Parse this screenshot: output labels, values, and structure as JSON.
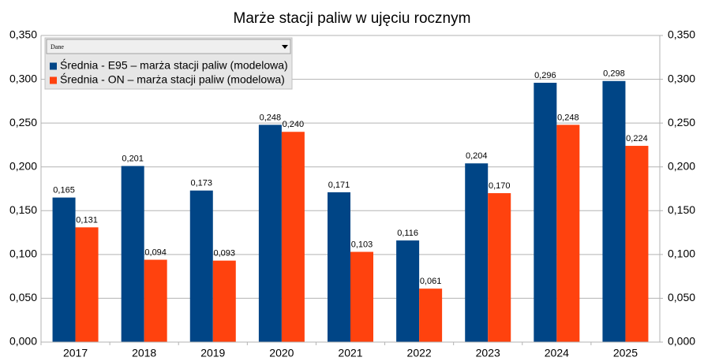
{
  "chart_data": {
    "type": "bar",
    "title": "Marże stacji paliw w ujęciu rocznym",
    "categories": [
      "2017",
      "2018",
      "2019",
      "2020",
      "2021",
      "2022",
      "2023",
      "2024",
      "2025"
    ],
    "series": [
      {
        "name": "Średnia - E95 – marża stacji paliw (modelowa)",
        "color": "#004586",
        "values": [
          0.165,
          0.201,
          0.173,
          0.248,
          0.171,
          0.116,
          0.204,
          0.296,
          0.298
        ],
        "value_labels": [
          "0,165",
          "0,201",
          "0,173",
          "0,248",
          "0,171",
          "0,116",
          "0,204",
          "0,296",
          "0,298"
        ]
      },
      {
        "name": "Średnia - ON – marża stacji paliw (modelowa)",
        "color": "#ff420e",
        "values": [
          0.131,
          0.094,
          0.093,
          0.24,
          0.103,
          0.061,
          0.17,
          0.248,
          0.224
        ],
        "value_labels": [
          "0,131",
          "0,094",
          "0,093",
          "0,240",
          "0,103",
          "0,061",
          "0,170",
          "0,248",
          "0,224"
        ]
      }
    ],
    "legend_title": "Dane",
    "ylim": [
      0,
      0.35
    ],
    "yticks": [
      {
        "value": 0,
        "label": "0,000"
      },
      {
        "value": 0.05,
        "label": "0,050"
      },
      {
        "value": 0.1,
        "label": "0,100"
      },
      {
        "value": 0.15,
        "label": "0,150"
      },
      {
        "value": 0.2,
        "label": "0,200"
      },
      {
        "value": 0.25,
        "label": "0,250"
      },
      {
        "value": 0.3,
        "label": "0,300"
      },
      {
        "value": 0.35,
        "label": "0,350"
      }
    ],
    "y2lim": [
      0,
      0.35
    ],
    "y2ticks": [
      {
        "value": 0,
        "label": "0,000"
      },
      {
        "value": 0.05,
        "label": "0,050"
      },
      {
        "value": 0.1,
        "label": "0,100"
      },
      {
        "value": 0.15,
        "label": "0,150"
      },
      {
        "value": 0.2,
        "label": "0,200"
      },
      {
        "value": 0.25,
        "label": "0,250"
      },
      {
        "value": 0.3,
        "label": "0,300"
      },
      {
        "value": 0.35,
        "label": "0,350"
      }
    ],
    "grid": true
  }
}
